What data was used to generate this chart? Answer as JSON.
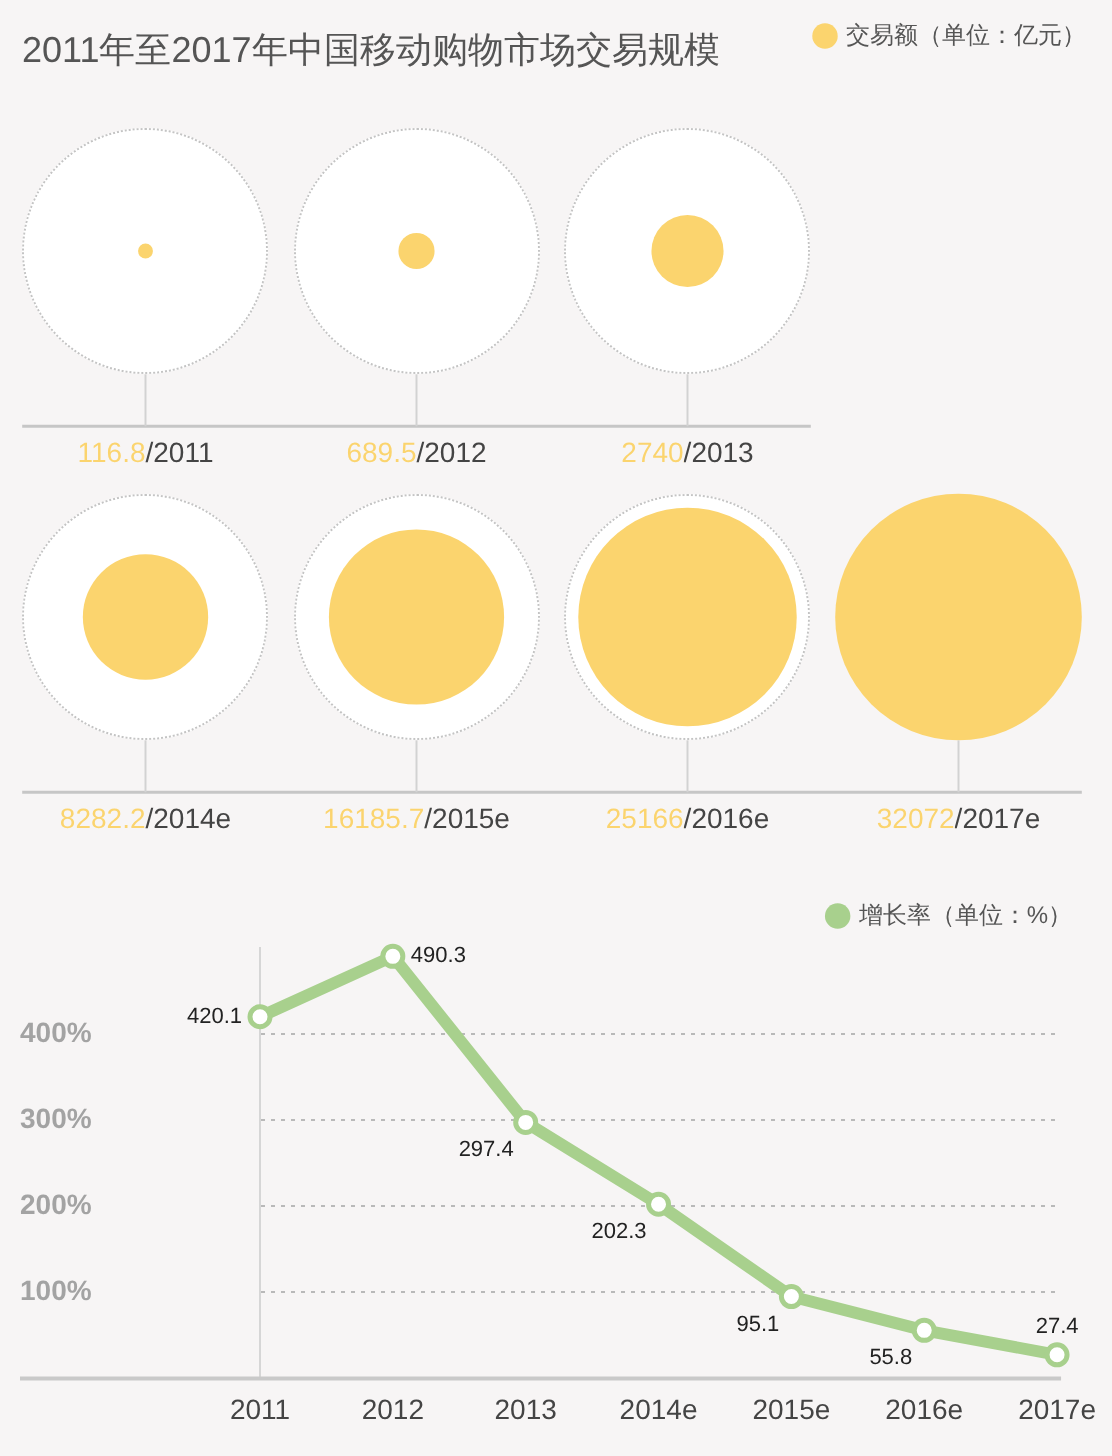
{
  "chart_data": [
    {
      "type": "other",
      "title": "2011年至2017年中国移动购物市场交易规模",
      "series": [
        {
          "name": "交易额（单位：亿元）",
          "color": "#fbd46e",
          "values": [
            116.8,
            689.5,
            2740,
            8282.2,
            16185.7,
            25166,
            32072
          ],
          "value_labels": [
            "116.8/2011",
            "689.5/2012",
            "2740/2013",
            "8282.2/2014e",
            "16185.7/2015e",
            "25166/2016e",
            "32072/2017e"
          ]
        }
      ],
      "legend": "top right"
    },
    {
      "type": "line",
      "categories": [
        "2011",
        "2012",
        "2013",
        "2014e",
        "2015e",
        "2016e",
        "2017e"
      ],
      "series": [
        {
          "name": "增长率（单位：%）",
          "color": "#a8d08d",
          "values": [
            420.1,
            490.3,
            297.4,
            202.3,
            95.1,
            55.8,
            27.4
          ]
        }
      ],
      "ylim": [
        0,
        500
      ],
      "yticks": [
        {
          "value": 100,
          "label": "100%"
        },
        {
          "value": 200,
          "label": "200%"
        },
        {
          "value": 300,
          "label": "300%"
        },
        {
          "value": 400,
          "label": "400%"
        }
      ],
      "grid": "y",
      "legend": "top right",
      "marker": "circle",
      "data_labels": true
    }
  ]
}
